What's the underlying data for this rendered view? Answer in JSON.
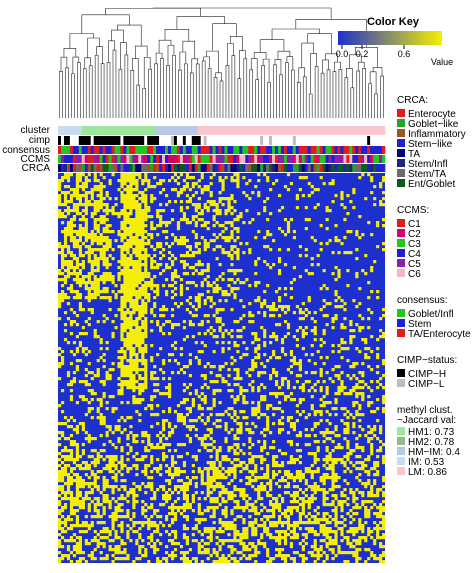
{
  "chart_data": {
    "type": "heatmap",
    "title": "",
    "color_key": {
      "title": "Color Key",
      "axis_label": "Value",
      "ticks": [
        "0.0",
        "0.2",
        "0.6"
      ],
      "range": [
        0,
        1
      ],
      "colormap": [
        "#1e2fd0",
        "#f4f000"
      ]
    },
    "annotation_rows": [
      "cluster",
      "cimp",
      "consensus",
      "CCMS",
      "CRCA"
    ],
    "legends": [
      {
        "title": "CRCA:",
        "items": [
          {
            "label": "Enterocyte",
            "color": "#e41a1c"
          },
          {
            "label": "Goblet−like",
            "color": "#2ca02c"
          },
          {
            "label": "Inflammatory",
            "color": "#a0522d"
          },
          {
            "label": "Stem−like",
            "color": "#1f1fd6"
          },
          {
            "label": "TA",
            "color": "#00007a"
          },
          {
            "label": "Stem/Infl",
            "color": "#1a237e"
          },
          {
            "label": "Stem/TA",
            "color": "#6b6b6b"
          },
          {
            "label": "Ent/Goblet",
            "color": "#0b5d1e"
          }
        ]
      },
      {
        "title": "CCMS:",
        "items": [
          {
            "label": "C1",
            "color": "#e41a1c"
          },
          {
            "label": "C2",
            "color": "#d6006a"
          },
          {
            "label": "C3",
            "color": "#22c522"
          },
          {
            "label": "C4",
            "color": "#1f1fd6"
          },
          {
            "label": "C5",
            "color": "#8a1fb0"
          },
          {
            "label": "C6",
            "color": "#f7b6c2"
          }
        ]
      },
      {
        "title": "consensus:",
        "items": [
          {
            "label": "Goblet/Infl",
            "color": "#22c522"
          },
          {
            "label": "Stem",
            "color": "#1f1fd6"
          },
          {
            "label": "TA/Enterocyte",
            "color": "#e41a1c"
          }
        ]
      },
      {
        "title": "CIMP−status:",
        "items": [
          {
            "label": "CIMP−H",
            "color": "#000000"
          },
          {
            "label": "CIMP−L",
            "color": "#bdbdbd"
          }
        ]
      },
      {
        "title": "methyl clust.",
        "title2": "~Jaccard val:",
        "items": [
          {
            "label": "HM1: 0.73",
            "color": "#9ee59e"
          },
          {
            "label": "HM2: 0.78",
            "color": "#8fbc8f"
          },
          {
            "label": "HM−IM: 0.4",
            "color": "#b8c8e6"
          },
          {
            "label": "IM: 0.53",
            "color": "#c8dcf0"
          },
          {
            "label": "LM: 0.86",
            "color": "#f7c6cf"
          }
        ]
      }
    ]
  }
}
